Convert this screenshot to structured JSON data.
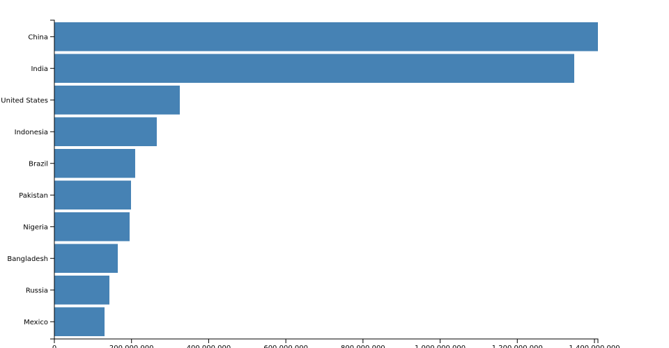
{
  "chart_data": {
    "type": "bar",
    "orientation": "horizontal",
    "color": "steelblue",
    "categories": [
      "China",
      "India",
      "United States",
      "Indonesia",
      "Brazil",
      "Pakistan",
      "Nigeria",
      "Bangladesh",
      "Russia",
      "Mexico"
    ],
    "values": [
      1409000000,
      1347600000,
      325200000,
      265500000,
      209500000,
      198700000,
      195100000,
      164400000,
      142700000,
      130100000
    ],
    "xlim": [
      0,
      1409000000
    ],
    "xticks": [
      0,
      {
        "value": 200000000,
        "label": "200,000,000"
      },
      {
        "value": 400000000,
        "label": "400,000,000"
      },
      {
        "value": 600000000,
        "label": "600,000,000"
      },
      {
        "value": 800000000,
        "label": "800,000,000"
      },
      {
        "value": 1000000000,
        "label": "1,000,000,000"
      },
      {
        "value": 1200000000,
        "label": "1,200,000,000"
      },
      {
        "value": 1400000000,
        "label": "1,400,000,000"
      }
    ]
  }
}
